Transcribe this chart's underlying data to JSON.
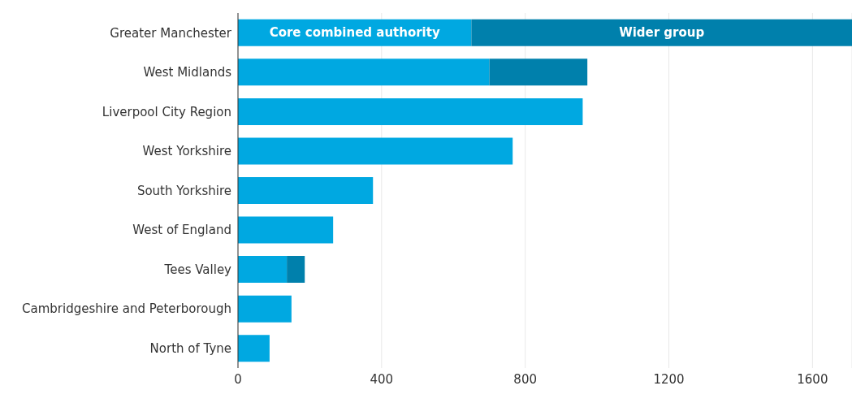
{
  "chart_data": {
    "type": "bar",
    "orientation": "horizontal",
    "stacked": true,
    "categories": [
      "Greater Manchester",
      "West Midlands",
      "Liverpool City Region",
      "West Yorkshire",
      "South Yorkshire",
      "West of England",
      "Tees Valley",
      "Cambridgeshire and Peterborough",
      "North of Tyne"
    ],
    "series": [
      {
        "name": "Core combined authority",
        "color": "#00a8e1",
        "values": [
          650,
          700,
          960,
          765,
          376,
          265,
          136,
          149,
          88
        ]
      },
      {
        "name": "Wider group",
        "color": "#0080ac",
        "values": [
          1060,
          273,
          null,
          null,
          null,
          null,
          50,
          null,
          null
        ]
      }
    ],
    "xlim": [
      0,
      1710
    ],
    "xticks": [
      0,
      400,
      800,
      1200,
      1600
    ],
    "grid": "x"
  }
}
